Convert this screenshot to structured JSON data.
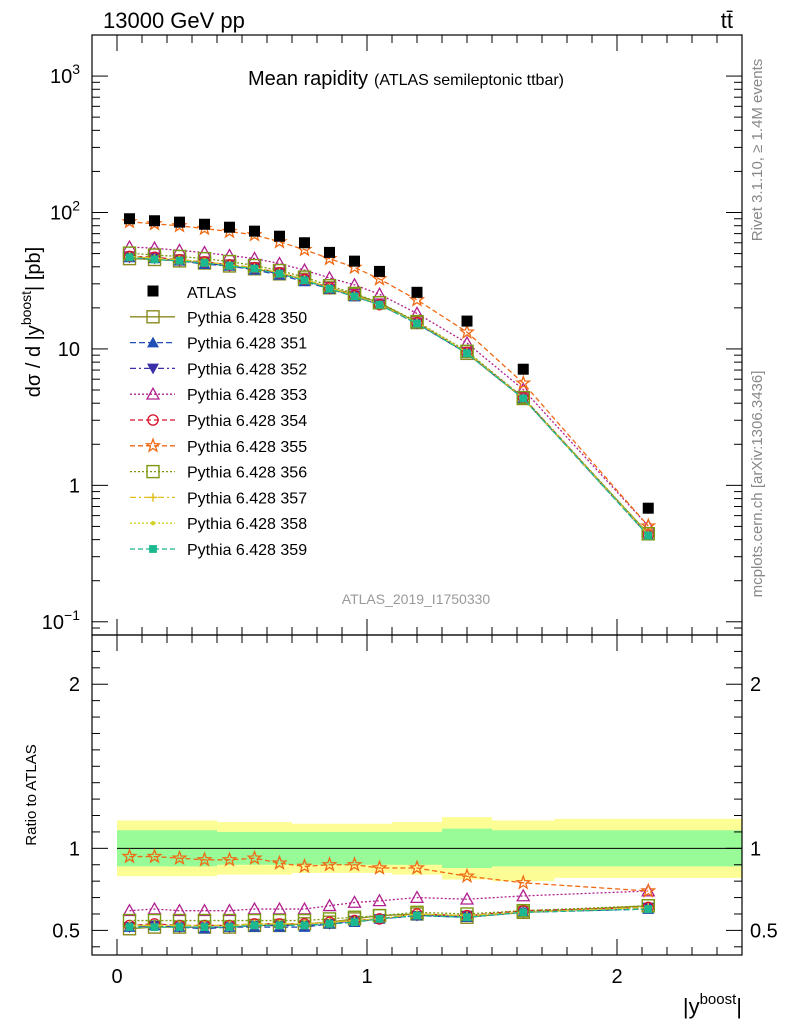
{
  "header": {
    "left": "13000 GeV pp",
    "right": "tt̄"
  },
  "side": {
    "rivet": "Rivet 3.1.10, ≥ 1.4M events",
    "mcplots": "mcplots.cern.ch [arXiv:1306.3436]"
  },
  "chart_data": {
    "type": "scatter",
    "title": "Mean rapidity",
    "subtitle": "(ATLAS semileptonic ttbar)",
    "watermark": "ATLAS_2019_I1750330",
    "xlabel": "|y",
    "xlabel_sup": "boost",
    "xlabel_end": "|",
    "ylabel": "dσ / d |y",
    "ylabel_sup": "boost",
    "ylabel_end": "| [pb]",
    "ratio_ylabel": "Ratio to ATLAS",
    "xlim": [
      -0.1,
      2.5
    ],
    "ylim_main": [
      0.08,
      2000
    ],
    "ylim_ratio": [
      0.35,
      2.3
    ],
    "y_scale_main": "log",
    "x_ticks": [
      {
        "v": 0,
        "label": "0"
      },
      {
        "v": 1,
        "label": "1"
      },
      {
        "v": 2,
        "label": "2"
      }
    ],
    "y_ticks_main": [
      {
        "v": 0.1,
        "label": "10",
        "sup": "−1"
      },
      {
        "v": 1,
        "label": "1",
        "sup": ""
      },
      {
        "v": 10,
        "label": "10",
        "sup": ""
      },
      {
        "v": 100,
        "label": "10",
        "sup": "2"
      },
      {
        "v": 1000,
        "label": "10",
        "sup": "3"
      }
    ],
    "y_ticks_ratio": [
      {
        "v": 0.5,
        "label": "0.5"
      },
      {
        "v": 1,
        "label": "1"
      },
      {
        "v": 2,
        "label": "2"
      }
    ],
    "legend_placement": "middle-left",
    "x": [
      0.05,
      0.15,
      0.25,
      0.35,
      0.45,
      0.55,
      0.65,
      0.75,
      0.85,
      0.95,
      1.05,
      1.2,
      1.4,
      1.625,
      2.125
    ],
    "bins": [
      [
        0,
        0.1
      ],
      [
        0.1,
        0.2
      ],
      [
        0.2,
        0.3
      ],
      [
        0.3,
        0.4
      ],
      [
        0.4,
        0.5
      ],
      [
        0.5,
        0.6
      ],
      [
        0.6,
        0.7
      ],
      [
        0.7,
        0.8
      ],
      [
        0.8,
        0.9
      ],
      [
        0.9,
        1.0
      ],
      [
        1.0,
        1.1
      ],
      [
        1.1,
        1.3
      ],
      [
        1.3,
        1.5
      ],
      [
        1.5,
        1.75
      ],
      [
        1.75,
        2.5
      ]
    ],
    "band_yellow": [
      [
        0.83,
        1.17
      ],
      [
        0.83,
        1.17
      ],
      [
        0.83,
        1.17
      ],
      [
        0.83,
        1.17
      ],
      [
        0.84,
        1.16
      ],
      [
        0.84,
        1.16
      ],
      [
        0.84,
        1.16
      ],
      [
        0.85,
        1.15
      ],
      [
        0.85,
        1.15
      ],
      [
        0.85,
        1.15
      ],
      [
        0.85,
        1.15
      ],
      [
        0.84,
        1.16
      ],
      [
        0.81,
        1.19
      ],
      [
        0.8,
        1.17
      ],
      [
        0.82,
        1.18
      ]
    ],
    "band_green": [
      [
        0.89,
        1.11
      ],
      [
        0.89,
        1.11
      ],
      [
        0.89,
        1.11
      ],
      [
        0.89,
        1.11
      ],
      [
        0.9,
        1.1
      ],
      [
        0.9,
        1.1
      ],
      [
        0.9,
        1.1
      ],
      [
        0.9,
        1.1
      ],
      [
        0.9,
        1.1
      ],
      [
        0.9,
        1.1
      ],
      [
        0.9,
        1.1
      ],
      [
        0.9,
        1.1
      ],
      [
        0.88,
        1.12
      ],
      [
        0.89,
        1.11
      ],
      [
        0.89,
        1.11
      ]
    ],
    "data": {
      "name": "ATLAS",
      "values": [
        90,
        87,
        85,
        82,
        78,
        73,
        67,
        60,
        51,
        44,
        37,
        26,
        16,
        7.1,
        0.68
      ]
    },
    "series": [
      {
        "name": "Pythia 6.428 350",
        "color": "#8a8a1e",
        "marker": "square-open",
        "dash": "",
        "ratio": [
          0.51,
          0.52,
          0.52,
          0.52,
          0.52,
          0.53,
          0.53,
          0.54,
          0.55,
          0.57,
          0.59,
          0.6,
          0.58,
          0.61,
          0.65
        ]
      },
      {
        "name": "Pythia 6.428 351",
        "color": "#1f4fb4",
        "marker": "triangle-up",
        "dash": "6,3",
        "ratio": [
          0.52,
          0.53,
          0.52,
          0.51,
          0.52,
          0.52,
          0.52,
          0.52,
          0.54,
          0.55,
          0.57,
          0.59,
          0.58,
          0.61,
          0.63
        ]
      },
      {
        "name": "Pythia 6.428 352",
        "color": "#3a2fa8",
        "marker": "triangle-down",
        "dash": "6,3,2,3",
        "ratio": [
          0.52,
          0.53,
          0.52,
          0.52,
          0.52,
          0.53,
          0.53,
          0.53,
          0.54,
          0.56,
          0.57,
          0.59,
          0.59,
          0.61,
          0.64
        ]
      },
      {
        "name": "Pythia 6.428 353",
        "color": "#b0208e",
        "marker": "triangle-open",
        "dash": "2,2",
        "ratio": [
          0.62,
          0.63,
          0.62,
          0.62,
          0.62,
          0.63,
          0.63,
          0.63,
          0.65,
          0.67,
          0.68,
          0.7,
          0.69,
          0.71,
          0.74
        ]
      },
      {
        "name": "Pythia 6.428 354",
        "color": "#d8112a",
        "marker": "circle-open",
        "dash": "5,3",
        "ratio": [
          0.53,
          0.54,
          0.53,
          0.53,
          0.53,
          0.54,
          0.54,
          0.54,
          0.55,
          0.56,
          0.57,
          0.6,
          0.59,
          0.62,
          0.64
        ]
      },
      {
        "name": "Pythia 6.428 355",
        "color": "#f06a14",
        "marker": "star-open",
        "dash": "5,3",
        "ratio": [
          0.95,
          0.95,
          0.94,
          0.93,
          0.93,
          0.94,
          0.91,
          0.89,
          0.9,
          0.9,
          0.88,
          0.88,
          0.83,
          0.79,
          0.74
        ]
      },
      {
        "name": "Pythia 6.428 356",
        "color": "#7a9a10",
        "marker": "square-open",
        "dash": "2,2",
        "ratio": [
          0.56,
          0.56,
          0.56,
          0.56,
          0.56,
          0.56,
          0.56,
          0.56,
          0.57,
          0.58,
          0.59,
          0.61,
          0.6,
          0.62,
          0.65
        ]
      },
      {
        "name": "Pythia 6.428 357",
        "color": "#e0c020",
        "marker": "plus",
        "dash": "6,3,2,3",
        "ratio": [
          0.53,
          0.53,
          0.53,
          0.53,
          0.53,
          0.54,
          0.54,
          0.54,
          0.55,
          0.56,
          0.57,
          0.6,
          0.59,
          0.61,
          0.64
        ]
      },
      {
        "name": "Pythia 6.428 358",
        "color": "#d2d22a",
        "marker": "dot",
        "dash": "2,2",
        "ratio": [
          0.53,
          0.53,
          0.53,
          0.53,
          0.53,
          0.54,
          0.54,
          0.54,
          0.55,
          0.56,
          0.57,
          0.6,
          0.59,
          0.61,
          0.64
        ]
      },
      {
        "name": "Pythia 6.428 359",
        "color": "#1cb890",
        "marker": "square",
        "dash": "5,3",
        "ratio": [
          0.52,
          0.52,
          0.52,
          0.52,
          0.52,
          0.53,
          0.53,
          0.53,
          0.54,
          0.55,
          0.57,
          0.59,
          0.58,
          0.61,
          0.63
        ]
      }
    ]
  }
}
